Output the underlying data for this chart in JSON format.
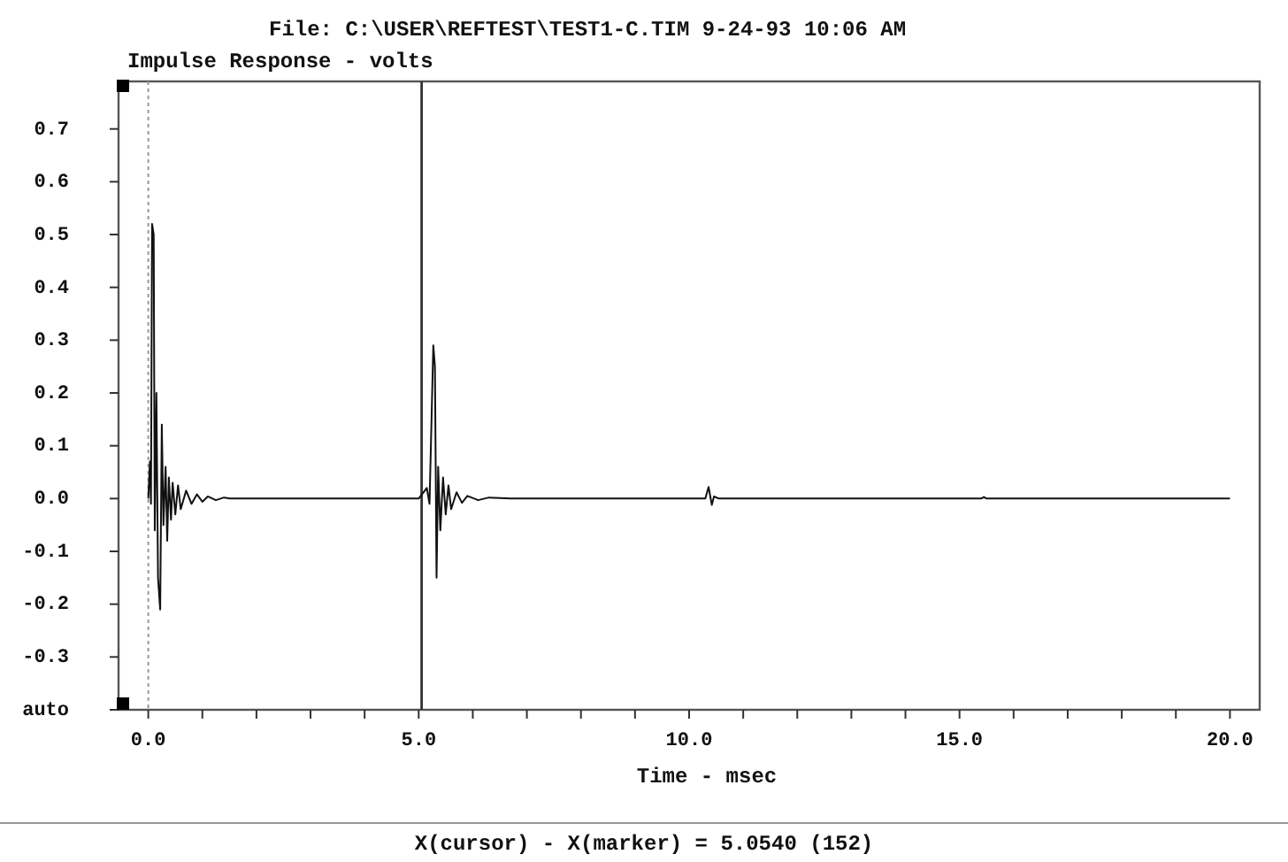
{
  "chart_data": {
    "type": "line",
    "title": "File: C:\\USER\\REFTEST\\TEST1-C.TIM 9-24-93 10:06 AM",
    "ylabel": "Impulse Response - volts",
    "xlabel": "Time - msec",
    "annotations": [
      "X(cursor) - X(marker) = 5.0540 (152)"
    ],
    "xlim": [
      -0.55,
      20.55
    ],
    "ylim": [
      -0.4,
      0.79
    ],
    "xticks": [
      {
        "value": 0,
        "label": "0.0"
      },
      {
        "value": 1,
        "label": null
      },
      {
        "value": 2,
        "label": null
      },
      {
        "value": 3,
        "label": null
      },
      {
        "value": 4,
        "label": null
      },
      {
        "value": 5,
        "label": "5.0"
      },
      {
        "value": 6,
        "label": null
      },
      {
        "value": 7,
        "label": null
      },
      {
        "value": 8,
        "label": null
      },
      {
        "value": 9,
        "label": null
      },
      {
        "value": 10,
        "label": "10.0"
      },
      {
        "value": 11,
        "label": null
      },
      {
        "value": 12,
        "label": null
      },
      {
        "value": 13,
        "label": null
      },
      {
        "value": 14,
        "label": null
      },
      {
        "value": 15,
        "label": "15.0"
      },
      {
        "value": 16,
        "label": null
      },
      {
        "value": 17,
        "label": null
      },
      {
        "value": 18,
        "label": null
      },
      {
        "value": 19,
        "label": null
      },
      {
        "value": 20,
        "label": "20.0"
      }
    ],
    "yticks": [
      {
        "value": -0.4,
        "label": "auto"
      },
      {
        "value": -0.3,
        "label": "-0.3"
      },
      {
        "value": -0.2,
        "label": "-0.2"
      },
      {
        "value": -0.1,
        "label": "-0.1"
      },
      {
        "value": 0,
        "label": "0.0"
      },
      {
        "value": 0.1,
        "label": "0.1"
      },
      {
        "value": 0.2,
        "label": "0.2"
      },
      {
        "value": 0.3,
        "label": "0.3"
      },
      {
        "value": 0.4,
        "label": "0.4"
      },
      {
        "value": 0.5,
        "label": "0.5"
      },
      {
        "value": 0.6,
        "label": "0.6"
      },
      {
        "value": 0.7,
        "label": "0.7"
      }
    ],
    "grid": false,
    "marker": "none",
    "line_style": "solid",
    "ref_lines": [
      {
        "axis": "x",
        "value": 0,
        "line_style": "dotted",
        "color": "#999999"
      },
      {
        "axis": "x",
        "value": 5.054,
        "line_style": "solid",
        "color": "#333333"
      }
    ],
    "series": [
      {
        "color": "#111111",
        "x": [
          0,
          0.03,
          0.05,
          0.07,
          0.1,
          0.12,
          0.15,
          0.18,
          0.22,
          0.25,
          0.28,
          0.32,
          0.35,
          0.38,
          0.42,
          0.45,
          0.5,
          0.55,
          0.6,
          0.7,
          0.8,
          0.9,
          1.0,
          1.1,
          1.25,
          1.4,
          1.5,
          5.0,
          5.15,
          5.2,
          5.27,
          5.3,
          5.33,
          5.36,
          5.4,
          5.45,
          5.5,
          5.55,
          5.6,
          5.7,
          5.8,
          5.9,
          6.1,
          6.3,
          6.7,
          10.3,
          10.36,
          10.42,
          10.46,
          10.55,
          15.4,
          15.45,
          15.5,
          20.0
        ],
        "values": [
          0,
          0.07,
          -0.01,
          0.52,
          0.5,
          -0.06,
          0.2,
          -0.15,
          -0.21,
          0.14,
          -0.05,
          0.06,
          -0.08,
          0.04,
          -0.04,
          0.03,
          -0.03,
          0.025,
          -0.02,
          0.015,
          -0.01,
          0.008,
          -0.006,
          0.004,
          -0.003,
          0.002,
          0,
          0,
          0.02,
          -0.01,
          0.29,
          0.25,
          -0.15,
          0.06,
          -0.06,
          0.04,
          -0.03,
          0.025,
          -0.02,
          0.012,
          -0.008,
          0.005,
          -0.003,
          0.002,
          0,
          0,
          0.022,
          -0.012,
          0.004,
          0,
          0,
          0.003,
          0,
          0
        ]
      }
    ]
  }
}
